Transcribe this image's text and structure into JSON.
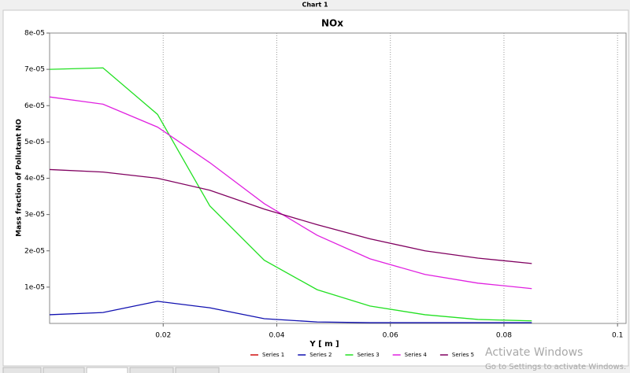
{
  "window": {
    "title": "Chart 1"
  },
  "chart_data": {
    "type": "line",
    "title": "NOx",
    "x_label": "Y [ m ]",
    "y_label": "Mass fraction of Pollutant NO",
    "x": [
      0,
      0.0094,
      0.019,
      0.0282,
      0.0378,
      0.0471,
      0.0564,
      0.0661,
      0.0754,
      0.0849
    ],
    "series": [
      {
        "name": "Series 1",
        "color": "#d01010",
        "values": [
          null,
          null,
          null,
          null,
          null,
          null,
          null,
          null,
          null,
          null
        ]
      },
      {
        "name": "Series 2",
        "color": "#1010b0",
        "values": [
          2.4e-06,
          3e-06,
          6.1e-06,
          4.3e-06,
          1.3e-06,
          4e-07,
          2e-07,
          2e-07,
          2e-07,
          2e-07
        ]
      },
      {
        "name": "Series 3",
        "color": "#22e022",
        "values": [
          7e-05,
          7.04e-05,
          5.76e-05,
          3.24e-05,
          1.74e-05,
          9.3e-06,
          4.8e-06,
          2.4e-06,
          1.1e-06,
          7e-07
        ]
      },
      {
        "name": "Series 4",
        "color": "#e020e0",
        "values": [
          6.24e-05,
          6.04e-05,
          5.41e-05,
          4.43e-05,
          3.3e-05,
          2.43e-05,
          1.78e-05,
          1.35e-05,
          1.11e-05,
          9.6e-06
        ]
      },
      {
        "name": "Series 5",
        "color": "#800060",
        "values": [
          4.24e-05,
          4.17e-05,
          4e-05,
          3.67e-05,
          3.15e-05,
          2.72e-05,
          2.33e-05,
          2e-05,
          1.8e-05,
          1.65e-05
        ]
      }
    ],
    "xlim": [
      0,
      0.1015
    ],
    "xticks": [
      0.02,
      0.04,
      0.06,
      0.08,
      0.1
    ],
    "ylim": [
      0,
      8e-05
    ],
    "yticks": [
      {
        "value": 1e-05,
        "label": "1e-05"
      },
      {
        "value": 2e-05,
        "label": "2e-05"
      },
      {
        "value": 3e-05,
        "label": "3e-05"
      },
      {
        "value": 4e-05,
        "label": "4e-05"
      },
      {
        "value": 5e-05,
        "label": "5e-05"
      },
      {
        "value": 6e-05,
        "label": "6e-05"
      },
      {
        "value": 7e-05,
        "label": "7e-05"
      },
      {
        "value": 8e-05,
        "label": "8e-05"
      }
    ],
    "xgrid": true,
    "legend": "bottom"
  },
  "watermark": {
    "title": "Activate Windows",
    "subtitle": "Go to Settings to activate Windows."
  }
}
